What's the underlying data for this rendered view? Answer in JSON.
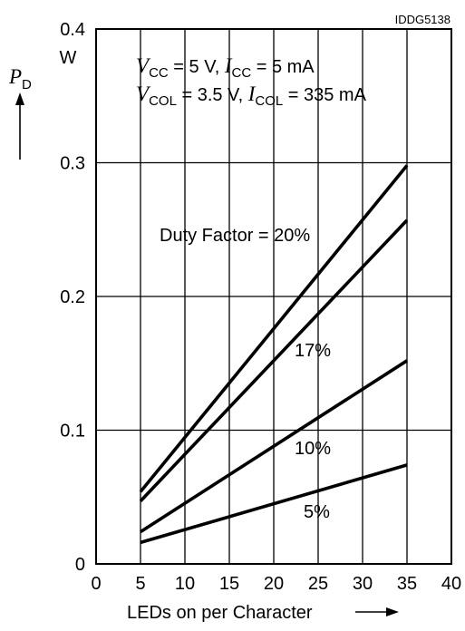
{
  "chart_data": {
    "type": "line",
    "figure_id": "IDDG5138",
    "y_unit": "W",
    "xlabel": "LEDs on per Character",
    "ylabel_symbol": "P",
    "ylabel_subscript": "D",
    "xlim": [
      0,
      40
    ],
    "ylim": [
      0,
      0.4
    ],
    "xticks": [
      "0",
      "5",
      "10",
      "15",
      "20",
      "25",
      "30",
      "35",
      "40"
    ],
    "yticks": [
      "0",
      "0.1",
      "0.2",
      "0.3",
      "0.4"
    ],
    "grid": true,
    "conditions": {
      "line1": {
        "v_sym": "V",
        "v_sub": "CC",
        "v_val": " = 5 V, ",
        "i_sym": "I",
        "i_sub": "CC",
        "i_val": " = 5 mA"
      },
      "line2": {
        "v_sym": "V",
        "v_sub": "COL",
        "v_val": " = 3.5 V, ",
        "i_sym": "I",
        "i_sub": "COL",
        "i_val": " = 335 mA"
      }
    },
    "series": [
      {
        "name": "Duty Factor = 20%",
        "x": [
          5,
          35
        ],
        "y": [
          0.054,
          0.298
        ]
      },
      {
        "name": "17%",
        "x": [
          5,
          35
        ],
        "y": [
          0.047,
          0.257
        ]
      },
      {
        "name": "10%",
        "x": [
          5,
          35
        ],
        "y": [
          0.024,
          0.152
        ]
      },
      {
        "name": "5%",
        "x": [
          5,
          35
        ],
        "y": [
          0.016,
          0.074
        ]
      }
    ]
  }
}
